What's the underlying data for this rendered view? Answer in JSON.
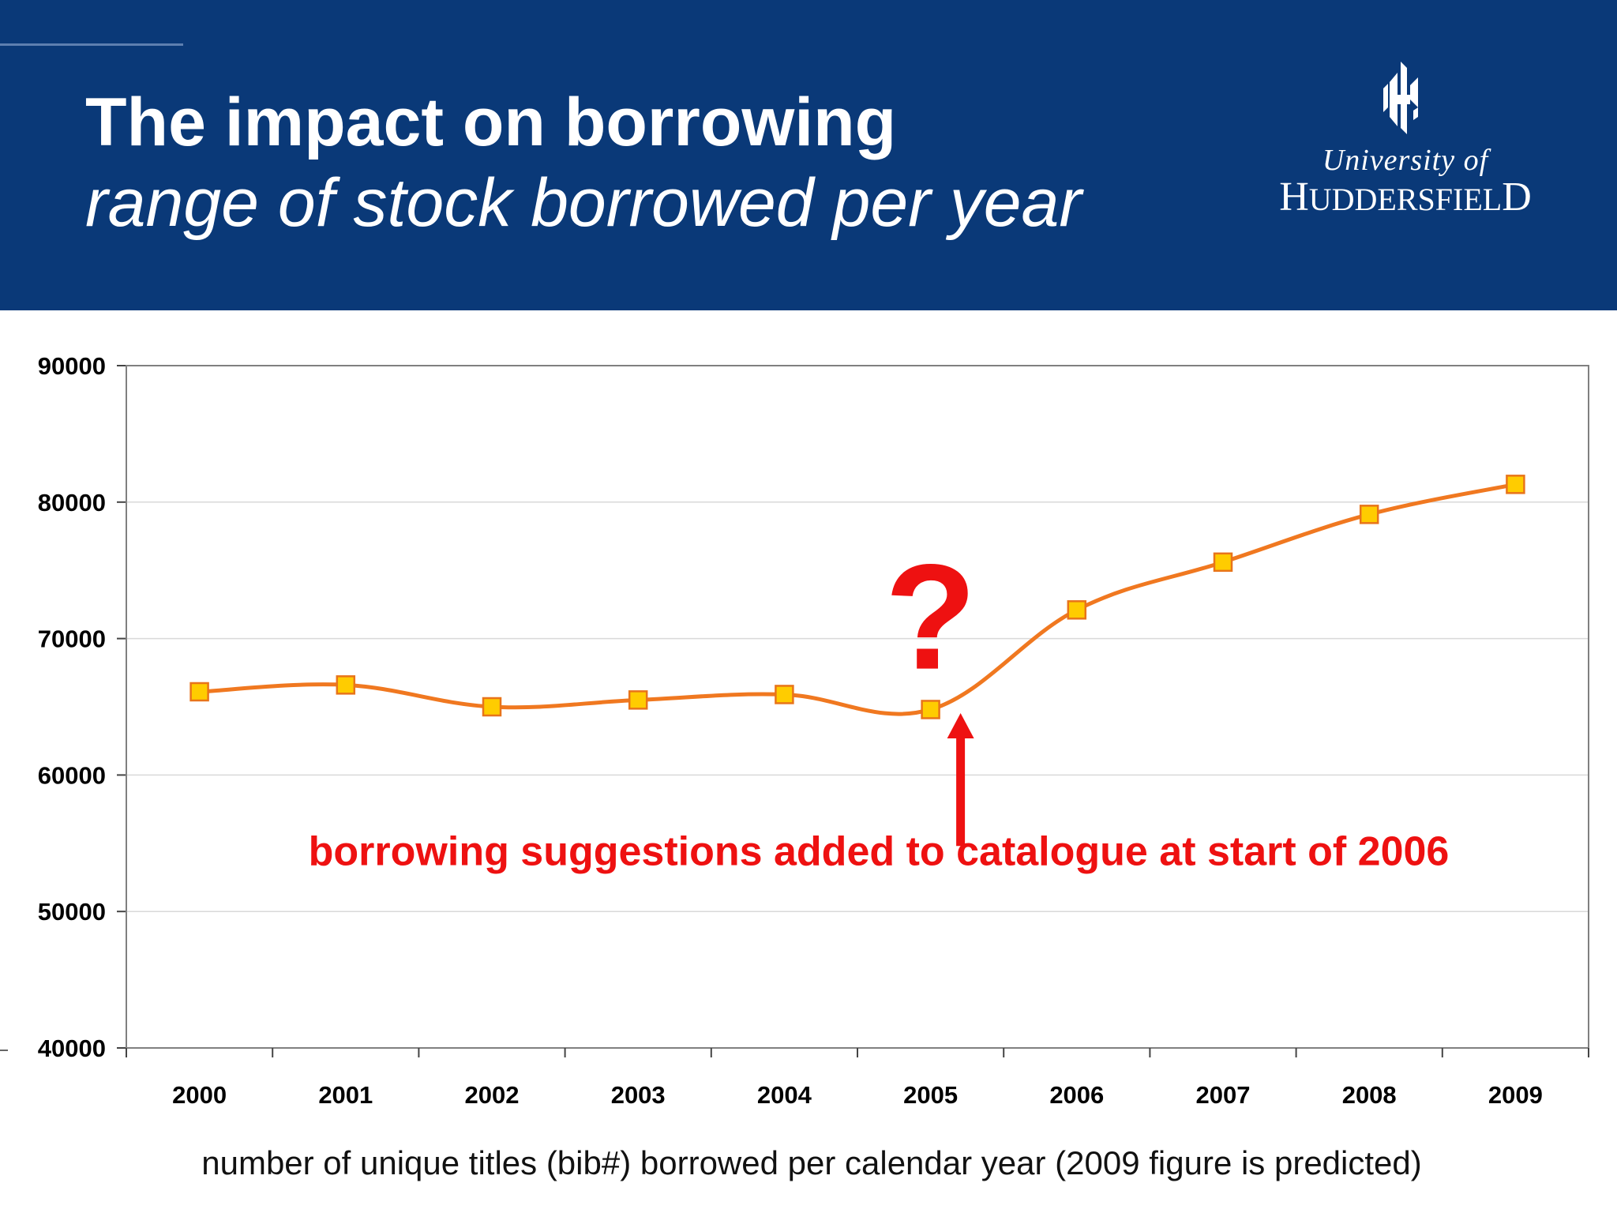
{
  "header": {
    "title": "The impact on borrowing",
    "subtitle": "range of stock borrowed per year"
  },
  "logo": {
    "line1": "University of",
    "line2_initial_h": "H",
    "line2_mid": "UDDERSFIEL",
    "line2_final_d": "D",
    "full_text": "University of HUDDERSFIELD"
  },
  "colors": {
    "header_bg": "#0a3978",
    "line": "#f07820",
    "marker_fill": "#ffcc00",
    "marker_stroke": "#e8741a",
    "annotation": "#ee1111"
  },
  "chart_data": {
    "type": "line",
    "title": "",
    "xlabel": "number of unique titles (bib#) borrowed per calendar year (2009 figure is predicted)",
    "ylabel": "",
    "categories": [
      "2000",
      "2001",
      "2002",
      "2003",
      "2004",
      "2005",
      "2006",
      "2007",
      "2008",
      "2009"
    ],
    "series": [
      {
        "name": "unique titles borrowed",
        "values": [
          66100,
          66600,
          65000,
          65500,
          65900,
          64800,
          72100,
          75600,
          79100,
          81300
        ]
      }
    ],
    "ylim": [
      40000,
      90000
    ],
    "yticks": [
      40000,
      50000,
      60000,
      70000,
      80000,
      90000
    ],
    "ytick_labels": [
      "40000",
      "50000",
      "60000",
      "70000",
      "80000",
      "90000"
    ],
    "grid": true,
    "smooth": true,
    "annotations": {
      "question_mark": "?",
      "question_mark_near": "2005",
      "arrow_points_to": "2005",
      "text": "borrowing suggestions added to catalogue at start of 2006"
    }
  }
}
